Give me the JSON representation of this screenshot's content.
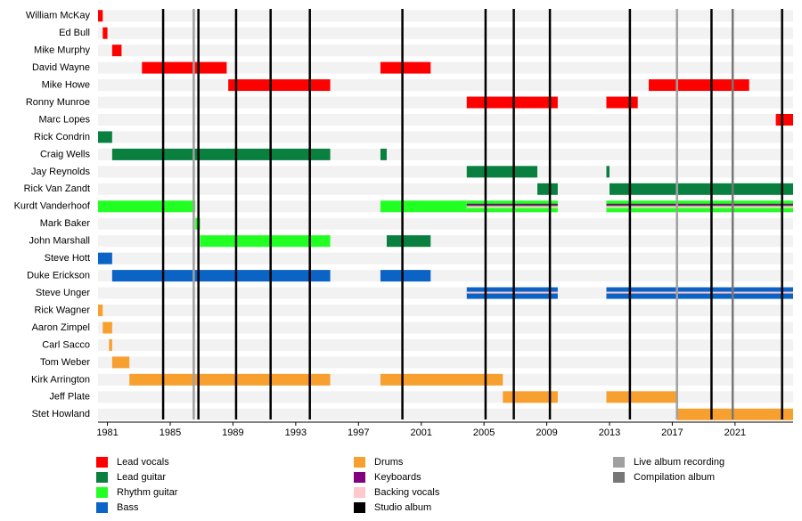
{
  "chart_data": {
    "type": "timeline",
    "xlim": [
      1980.4,
      2024.7
    ],
    "xticks": [
      1981,
      1985,
      1989,
      1993,
      1997,
      2001,
      2005,
      2009,
      2013,
      2017,
      2021
    ],
    "legend": [
      {
        "name": "Lead vocals",
        "color": "#ff0000"
      },
      {
        "name": "Lead guitar",
        "color": "#0a8040"
      },
      {
        "name": "Rhythm guitar",
        "color": "#22ff22"
      },
      {
        "name": "Bass",
        "color": "#0b63c6"
      },
      {
        "name": "Drums",
        "color": "#f7a030"
      },
      {
        "name": "Keyboards",
        "color": "#800080"
      },
      {
        "name": "Backing vocals",
        "color": "#ffc8cc"
      },
      {
        "name": "Studio album",
        "color": "#000000"
      },
      {
        "name": "Live album recording",
        "color": "#a0a0a0"
      },
      {
        "name": "Compilation album",
        "color": "#777777"
      }
    ],
    "members": [
      {
        "name": "William McKay",
        "periods": [
          {
            "role": "Lead vocals",
            "start": 1980.4,
            "end": 1980.7
          }
        ]
      },
      {
        "name": "Ed Bull",
        "periods": [
          {
            "role": "Lead vocals",
            "start": 1980.7,
            "end": 1981.0
          }
        ]
      },
      {
        "name": "Mike Murphy",
        "periods": [
          {
            "role": "Lead vocals",
            "start": 1981.3,
            "end": 1981.9
          }
        ]
      },
      {
        "name": "David Wayne",
        "periods": [
          {
            "role": "Lead vocals",
            "start": 1983.2,
            "end": 1988.6
          },
          {
            "role": "Lead vocals",
            "start": 1998.4,
            "end": 2001.6
          }
        ]
      },
      {
        "name": "Mike Howe",
        "periods": [
          {
            "role": "Lead vocals",
            "start": 1988.7,
            "end": 1995.2
          },
          {
            "role": "Lead vocals",
            "start": 2015.5,
            "end": 2021.9
          }
        ]
      },
      {
        "name": "Ronny Munroe",
        "periods": [
          {
            "role": "Lead vocals",
            "start": 2003.9,
            "end": 2009.7
          },
          {
            "role": "Lead vocals",
            "start": 2012.8,
            "end": 2014.8
          }
        ]
      },
      {
        "name": "Marc Lopes",
        "periods": [
          {
            "role": "Lead vocals",
            "start": 2023.6,
            "end": 2024.7
          }
        ]
      },
      {
        "name": "Rick Condrin",
        "periods": [
          {
            "role": "Lead guitar",
            "start": 1980.4,
            "end": 1981.3
          }
        ]
      },
      {
        "name": "Craig Wells",
        "periods": [
          {
            "role": "Lead guitar",
            "start": 1981.3,
            "end": 1995.2
          },
          {
            "role": "Lead guitar",
            "start": 1998.4,
            "end": 1998.8
          }
        ]
      },
      {
        "name": "Jay Reynolds",
        "periods": [
          {
            "role": "Lead guitar",
            "start": 2003.9,
            "end": 2008.4
          },
          {
            "role": "Lead guitar",
            "start": 2012.8,
            "end": 2013.0
          }
        ]
      },
      {
        "name": "Rick Van Zandt",
        "periods": [
          {
            "role": "Lead guitar",
            "start": 2008.4,
            "end": 2009.7
          },
          {
            "role": "Lead guitar",
            "start": 2013.0,
            "end": 2024.7
          }
        ]
      },
      {
        "name": "Kurdt Vanderhoof",
        "periods": [
          {
            "role": "Rhythm guitar",
            "start": 1980.4,
            "end": 1986.6
          },
          {
            "role": "Rhythm guitar",
            "start": 1998.4,
            "end": 2003.9
          },
          {
            "role": "Rhythm guitar",
            "start": 2003.9,
            "end": 2009.7,
            "with": [
              "Keyboards",
              "Backing vocals"
            ]
          },
          {
            "role": "Rhythm guitar",
            "start": 2012.8,
            "end": 2024.7,
            "with": [
              "Keyboards",
              "Backing vocals"
            ]
          }
        ]
      },
      {
        "name": "Mark Baker",
        "periods": [
          {
            "role": "Rhythm guitar",
            "start": 1986.6,
            "end": 1986.9
          }
        ]
      },
      {
        "name": "John Marshall",
        "periods": [
          {
            "role": "Rhythm guitar",
            "start": 1986.9,
            "end": 1995.2
          },
          {
            "role": "Lead guitar",
            "start": 1998.8,
            "end": 2001.6
          }
        ]
      },
      {
        "name": "Steve Hott",
        "periods": [
          {
            "role": "Bass",
            "start": 1980.4,
            "end": 1981.3
          }
        ]
      },
      {
        "name": "Duke Erickson",
        "periods": [
          {
            "role": "Bass",
            "start": 1981.3,
            "end": 1995.2
          },
          {
            "role": "Bass",
            "start": 1998.4,
            "end": 2001.6
          }
        ]
      },
      {
        "name": "Steve Unger",
        "periods": [
          {
            "role": "Bass",
            "start": 2003.9,
            "end": 2009.7,
            "with": [
              "Backing vocals"
            ]
          },
          {
            "role": "Bass",
            "start": 2012.8,
            "end": 2024.7,
            "with": [
              "Backing vocals"
            ]
          }
        ]
      },
      {
        "name": "Rick Wagner",
        "periods": [
          {
            "role": "Drums",
            "start": 1980.4,
            "end": 1980.7
          }
        ]
      },
      {
        "name": "Aaron Zimpel",
        "periods": [
          {
            "role": "Drums",
            "start": 1980.7,
            "end": 1981.3
          }
        ]
      },
      {
        "name": "Carl Sacco",
        "periods": [
          {
            "role": "Drums",
            "start": 1981.1,
            "end": 1981.3
          }
        ]
      },
      {
        "name": "Tom Weber",
        "periods": [
          {
            "role": "Drums",
            "start": 1981.3,
            "end": 1982.4
          }
        ]
      },
      {
        "name": "Kirk Arrington",
        "periods": [
          {
            "role": "Drums",
            "start": 1982.4,
            "end": 1995.2
          },
          {
            "role": "Drums",
            "start": 1998.4,
            "end": 2006.2
          }
        ]
      },
      {
        "name": "Jeff Plate",
        "periods": [
          {
            "role": "Drums",
            "start": 2006.2,
            "end": 2009.7
          },
          {
            "role": "Drums",
            "start": 2012.8,
            "end": 2017.3
          }
        ]
      },
      {
        "name": "Stet Howland",
        "periods": [
          {
            "role": "Drums",
            "start": 2017.3,
            "end": 2024.7
          }
        ]
      }
    ],
    "events": [
      {
        "type": "Studio album",
        "year": 1984.55
      },
      {
        "type": "Studio album",
        "year": 1986.8
      },
      {
        "type": "Studio album",
        "year": 1989.2
      },
      {
        "type": "Studio album",
        "year": 1991.4
      },
      {
        "type": "Studio album",
        "year": 1993.9
      },
      {
        "type": "Studio album",
        "year": 1999.8
      },
      {
        "type": "Studio album",
        "year": 2005.1
      },
      {
        "type": "Studio album",
        "year": 2006.9
      },
      {
        "type": "Studio album",
        "year": 2009.2
      },
      {
        "type": "Studio album",
        "year": 2014.3
      },
      {
        "type": "Studio album",
        "year": 2019.5
      },
      {
        "type": "Studio album",
        "year": 2024.0
      },
      {
        "type": "Live album recording",
        "year": 1986.5
      },
      {
        "type": "Live album recording",
        "year": 2017.3
      },
      {
        "type": "Compilation album",
        "year": 2020.85
      }
    ]
  }
}
